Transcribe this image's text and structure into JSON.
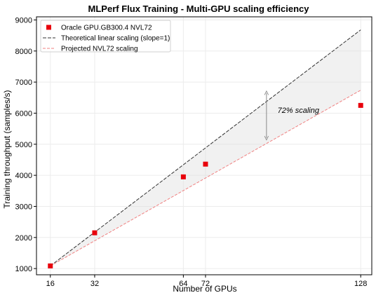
{
  "chart_data": {
    "type": "scatter",
    "title": "MLPerf Flux Training - Multi-GPU scaling efficiency",
    "xlabel": "Number of GPUs",
    "ylabel": "Training throughput (samples/s)",
    "xlim": [
      11,
      132
    ],
    "ylim": [
      800,
      9100
    ],
    "xticks": [
      16,
      32,
      64,
      72,
      128
    ],
    "yticks": [
      1000,
      2000,
      3000,
      4000,
      5000,
      6000,
      7000,
      8000,
      9000
    ],
    "grid": true,
    "legend_position": "top-left",
    "series": [
      {
        "name": "Oracle GPU.GB300.4 NVL72",
        "kind": "points",
        "color": "#e8000b",
        "x": [
          16,
          32,
          64,
          72,
          128
        ],
        "y": [
          1085,
          2150,
          3950,
          4360,
          6250
        ]
      },
      {
        "name": "Theoretical linear scaling (slope=1)",
        "kind": "line",
        "style": "dashed",
        "color": "#333333",
        "x": [
          16,
          128
        ],
        "y": [
          1085,
          8680
        ]
      },
      {
        "name": "Projected NVL72 scaling",
        "kind": "line",
        "style": "dashed",
        "color": "#f08080",
        "x": [
          16,
          128
        ],
        "y": [
          1085,
          6740
        ]
      }
    ],
    "shaded_region": {
      "between": [
        "Theoretical linear scaling (slope=1)",
        "Projected NVL72 scaling"
      ],
      "color": "#e0e0e0"
    },
    "annotations": [
      {
        "text": "72% scaling",
        "x": 98,
        "y": 6100,
        "arrow": {
          "x": 94,
          "from_y": 6650,
          "to_y": 5200
        }
      }
    ]
  }
}
